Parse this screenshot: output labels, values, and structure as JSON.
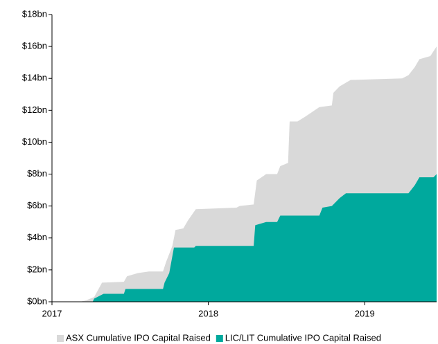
{
  "chart_data": {
    "type": "area",
    "series": [
      {
        "name": "ASX Cumulative IPO Capital Raised",
        "color": "#d9d9d9",
        "x": [
          2017,
          2017.18,
          2017.22,
          2017.27,
          2017.32,
          2017.46,
          2017.48,
          2017.55,
          2017.62,
          2017.71,
          2017.73,
          2017.77,
          2017.79,
          2017.84,
          2017.87,
          2017.92,
          2018.18,
          2018.2,
          2018.29,
          2018.31,
          2018.37,
          2018.44,
          2018.46,
          2018.51,
          2018.52,
          2018.57,
          2018.62,
          2018.71,
          2018.79,
          2018.8,
          2018.84,
          2018.91,
          2019.24,
          2019.28,
          2019.32,
          2019.35,
          2019.42,
          2019.46
        ],
        "values": [
          0,
          0,
          0.1,
          0.3,
          1.2,
          1.25,
          1.6,
          1.8,
          1.9,
          1.9,
          2.5,
          3.5,
          4.5,
          4.6,
          5.1,
          5.8,
          5.9,
          6.0,
          6.1,
          7.6,
          8.0,
          8.0,
          8.5,
          8.7,
          11.3,
          11.3,
          11.6,
          12.2,
          12.3,
          13.1,
          13.5,
          13.9,
          14.0,
          14.2,
          14.7,
          15.2,
          15.4,
          16.0
        ]
      },
      {
        "name": "LIC/LIT Cumulative IPO Capital Raised",
        "color": "#00a99d",
        "x": [
          2017,
          2017.26,
          2017.27,
          2017.33,
          2017.46,
          2017.47,
          2017.71,
          2017.72,
          2017.75,
          2017.78,
          2017.91,
          2017.92,
          2018.29,
          2018.3,
          2018.37,
          2018.44,
          2018.46,
          2018.71,
          2018.73,
          2018.79,
          2018.84,
          2018.88,
          2019.28,
          2019.32,
          2019.35,
          2019.44,
          2019.46
        ],
        "values": [
          0,
          0,
          0.2,
          0.5,
          0.5,
          0.8,
          0.8,
          1.2,
          1.8,
          3.4,
          3.4,
          3.5,
          3.5,
          4.8,
          5.0,
          5.0,
          5.4,
          5.4,
          5.9,
          6.0,
          6.5,
          6.8,
          6.8,
          7.3,
          7.8,
          7.8,
          8.0
        ]
      }
    ],
    "xlim": [
      2017,
      2019.46
    ],
    "xticks": [
      2017,
      2018,
      2019
    ],
    "ylim": [
      0,
      18
    ],
    "yticks": [
      {
        "value": 0,
        "label": "$0bn"
      },
      {
        "value": 2,
        "label": "$2bn"
      },
      {
        "value": 4,
        "label": "$4bn"
      },
      {
        "value": 6,
        "label": "$6bn"
      },
      {
        "value": 8,
        "label": "$8bn"
      },
      {
        "value": 10,
        "label": "$10bn"
      },
      {
        "value": 12,
        "label": "$12bn"
      },
      {
        "value": 14,
        "label": "$14bn"
      },
      {
        "value": 16,
        "label": "$16bn"
      },
      {
        "value": 18,
        "label": "$18bn"
      }
    ],
    "legend": "bottom"
  }
}
